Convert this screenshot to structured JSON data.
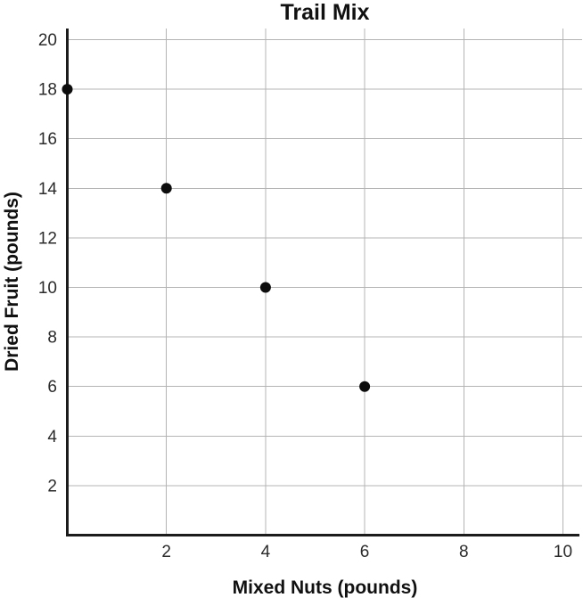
{
  "page": {
    "background": "#ffffff"
  },
  "chart_data": {
    "type": "scatter",
    "title": "Trail Mix",
    "xlabel": "Mixed Nuts (pounds)",
    "ylabel": "Dried Fruit (pounds)",
    "points": [
      {
        "x": 0,
        "y": 18
      },
      {
        "x": 2,
        "y": 14
      },
      {
        "x": 4,
        "y": 10
      },
      {
        "x": 6,
        "y": 6
      }
    ],
    "x_ticks": [
      2,
      4,
      6,
      8,
      10
    ],
    "y_ticks": [
      2,
      4,
      6,
      8,
      10,
      12,
      14,
      16,
      18,
      20
    ],
    "xlim": [
      0,
      10
    ],
    "ylim": [
      0,
      20
    ],
    "grid": true,
    "legend": "none",
    "colors": {
      "point": "#0d0d0d",
      "grid": "#b4b4b4",
      "axis": "#1c1c1c",
      "tick_text": "#2b2b2b"
    }
  }
}
